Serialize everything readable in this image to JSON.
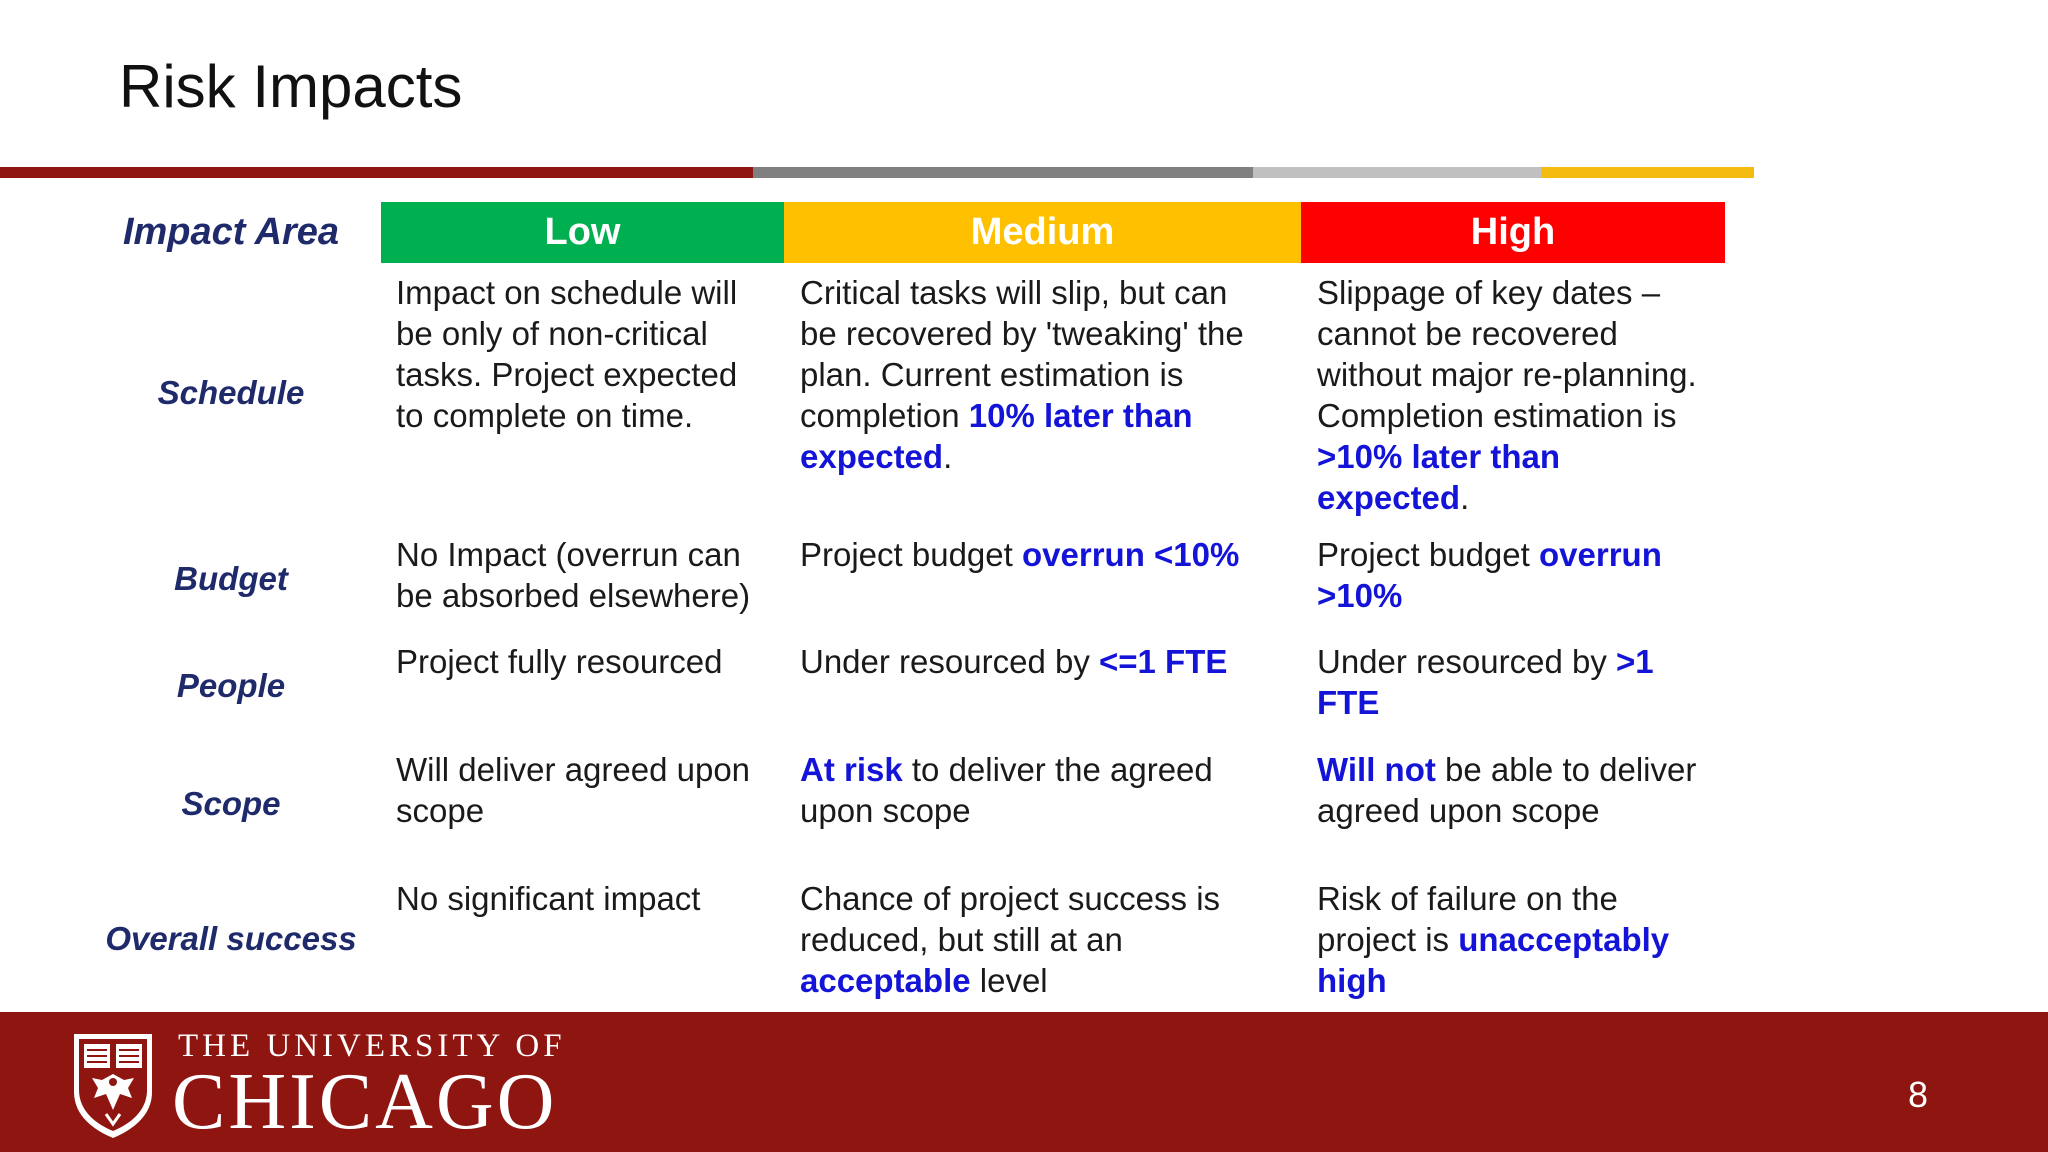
{
  "slide": {
    "title": "Risk Impacts",
    "page_number": "8"
  },
  "table": {
    "headers": {
      "area": "Impact Area",
      "low": "Low",
      "medium": "Medium",
      "high": "High"
    },
    "colors": {
      "low": "#00b050",
      "medium": "#ffc000",
      "high": "#ff0000",
      "highlight": "#1414d8"
    },
    "rows": [
      {
        "area": "Schedule",
        "low": [
          {
            "t": "Impact on schedule will\nbe only of non-critical\ntasks.  Project expected\nto complete on time."
          }
        ],
        "medium": [
          {
            "t": "Critical tasks will slip, but can\nbe recovered by 'tweaking' the\nplan.  Current estimation is\ncompletion "
          },
          {
            "t": "10% later than\nexpected",
            "hl": true
          },
          {
            "t": "."
          }
        ],
        "high": [
          {
            "t": "Slippage of key dates –\ncannot be recovered\nwithout major re-planning.\nCompletion estimation is\n"
          },
          {
            "t": ">10% later than\nexpected",
            "hl": true
          },
          {
            "t": "."
          }
        ]
      },
      {
        "area": "Budget",
        "low": [
          {
            "t": "No Impact (overrun can\nbe absorbed elsewhere)"
          }
        ],
        "medium": [
          {
            "t": "Project budget "
          },
          {
            "t": "overrun <10%",
            "hl": true
          }
        ],
        "high": [
          {
            "t": "Project budget "
          },
          {
            "t": "overrun\n>10%",
            "hl": true
          }
        ]
      },
      {
        "area": "People",
        "low": [
          {
            "t": "Project fully resourced"
          }
        ],
        "medium": [
          {
            "t": "Under resourced by "
          },
          {
            "t": "<=1 FTE",
            "hl": true
          }
        ],
        "high": [
          {
            "t": "Under resourced by "
          },
          {
            "t": ">1\nFTE",
            "hl": true
          }
        ]
      },
      {
        "area": "Scope",
        "low": [
          {
            "t": "Will deliver agreed upon\nscope"
          }
        ],
        "medium": [
          {
            "t": "At risk",
            "hl": true
          },
          {
            "t": " to deliver the agreed\nupon scope"
          }
        ],
        "high": [
          {
            "t": "Will not",
            "hl": true
          },
          {
            "t": " be able to deliver\nagreed upon scope"
          }
        ]
      },
      {
        "area": "Overall success",
        "low": [
          {
            "t": "No significant impact"
          }
        ],
        "medium": [
          {
            "t": "Chance of project success is\nreduced, but still at an\n"
          },
          {
            "t": "acceptable",
            "hl": true
          },
          {
            "t": " level"
          }
        ],
        "high": [
          {
            "t": "Risk of failure on the\nproject is "
          },
          {
            "t": "unacceptably\nhigh",
            "hl": true
          }
        ]
      }
    ]
  },
  "footer": {
    "university_line1": "THE UNIVERSITY OF",
    "university_line2": "CHICAGO",
    "logo_icon": "university-crest-icon",
    "background_color": "#8f1511"
  }
}
